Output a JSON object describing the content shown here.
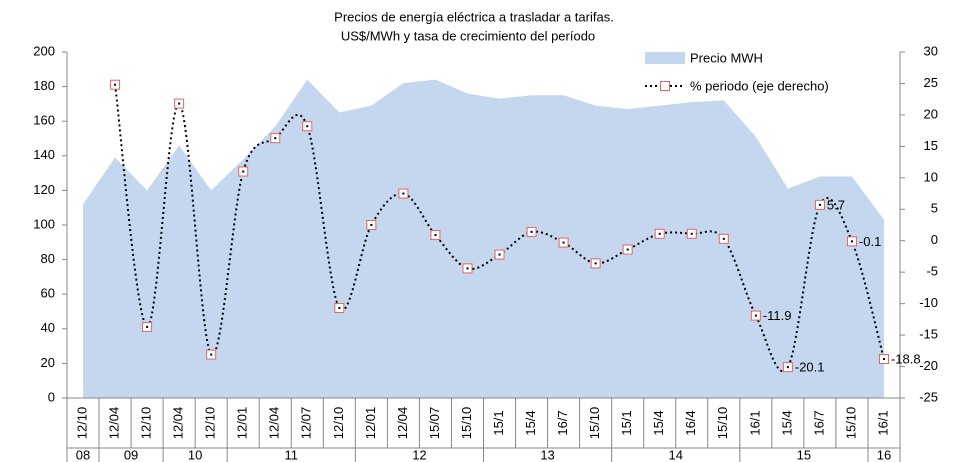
{
  "chart_data": {
    "type": "area_line",
    "title": "Precios de energía eléctrica a trasladar a tarifas.",
    "subtitle": "US$/MWh y tasa de crecimiento del período",
    "categories": [
      "12/10",
      "12/04",
      "12/10",
      "12/04",
      "12/10",
      "12/01",
      "12/04",
      "12/07",
      "12/10",
      "12/01",
      "12/04",
      "15/07",
      "15/10",
      "15/1",
      "15/4",
      "16/7",
      "15/10",
      "15/1",
      "15/4",
      "16/4",
      "15/10",
      "16/1",
      "15/4",
      "16/7",
      "15/10",
      "16/1"
    ],
    "groups": [
      "08",
      "09",
      "09",
      "10",
      "10",
      "11",
      "11",
      "11",
      "11",
      "12",
      "12",
      "12",
      "12",
      "13",
      "13",
      "13",
      "13",
      "14",
      "14",
      "14",
      "14",
      "15",
      "15",
      "15",
      "15",
      "16"
    ],
    "series": [
      {
        "name": "Precio MWH",
        "color": "#c5d7ee",
        "axis": "y",
        "values": [
          112,
          139,
          120,
          146,
          120,
          138,
          157,
          184,
          165,
          169,
          182,
          184,
          176,
          173,
          175,
          175,
          169,
          167,
          169,
          171,
          172,
          151,
          121,
          128,
          128,
          103
        ]
      },
      {
        "name": "% periodo (eje derecho)",
        "color": "#000000",
        "marker_color": "#e06666",
        "axis": "y2",
        "values": [
          null,
          24.8,
          -13.7,
          21.8,
          -18.1,
          11.0,
          16.3,
          18.2,
          -10.7,
          2.5,
          7.5,
          0.9,
          -4.4,
          -2.2,
          1.4,
          -0.3,
          -3.6,
          -1.4,
          1.1,
          1.1,
          0.3,
          -11.9,
          -20.1,
          5.7,
          -0.1,
          -18.8
        ],
        "value_labels": [
          null,
          null,
          null,
          null,
          null,
          null,
          null,
          null,
          null,
          null,
          null,
          null,
          null,
          null,
          null,
          null,
          null,
          null,
          null,
          null,
          null,
          -11.9,
          -20.1,
          5.7,
          -0.1,
          -18.8
        ]
      }
    ],
    "ylim": [
      0,
      200
    ],
    "yticks": [
      0,
      20,
      40,
      60,
      80,
      100,
      120,
      140,
      160,
      180,
      200
    ],
    "y2lim": [
      -25,
      30
    ],
    "y2ticks": [
      -25,
      -20,
      -15,
      -10,
      -5,
      0,
      5,
      10,
      15,
      20,
      25,
      30
    ],
    "legend": "top-right"
  }
}
